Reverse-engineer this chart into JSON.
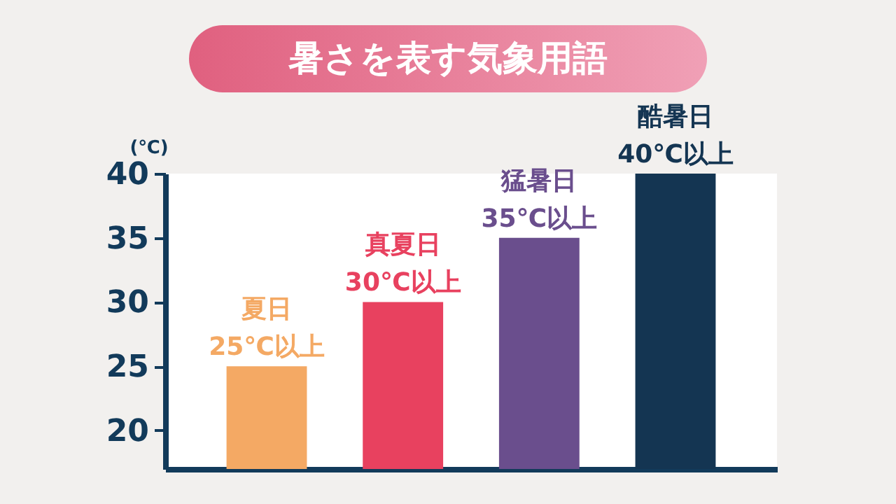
{
  "chart_data": {
    "type": "bar",
    "title": "暑さを表す気象用語",
    "ylabel": "(℃)",
    "categories": [
      "夏日",
      "真夏日",
      "猛暑日",
      "酷暑日"
    ],
    "values": [
      25,
      30,
      35,
      40
    ],
    "colors": [
      "#f4a964",
      "#e8415f",
      "#6a4e8d",
      "#143552"
    ],
    "value_labels": [
      "25℃以上",
      "30℃以上",
      "35℃以上",
      "40℃以上"
    ],
    "ylim": [
      17,
      40
    ],
    "yticks": [
      20,
      25,
      30,
      35,
      40
    ],
    "grid": false
  }
}
